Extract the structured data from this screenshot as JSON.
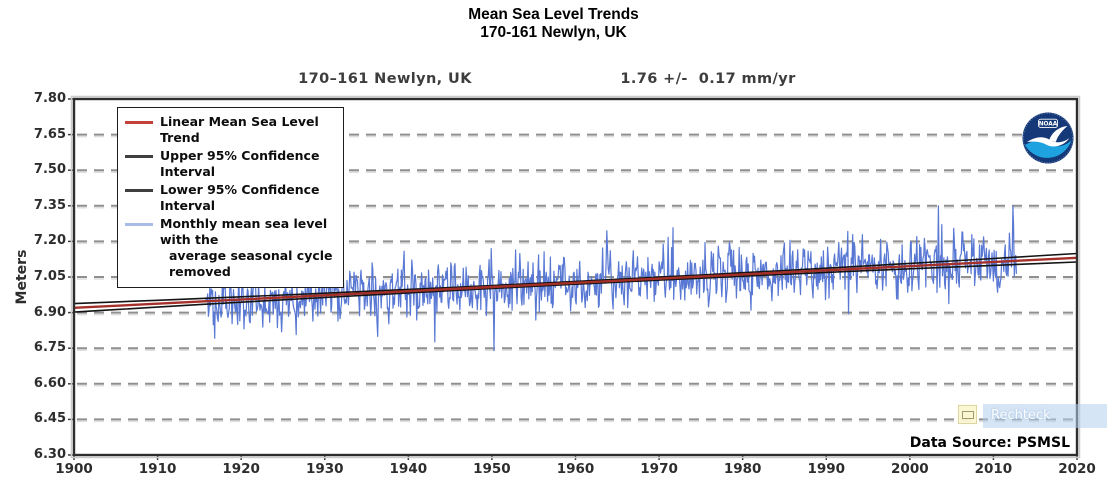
{
  "header": {
    "title_line1": "Mean Sea Level Trends",
    "title_line2": "170-161 Newlyn, UK"
  },
  "chart_data": {
    "type": "line",
    "station_label": "170–161 Newlyn, UK",
    "trend_label": "1.76 +/-  0.17 mm/yr",
    "ylabel": "Meters",
    "x_axis": {
      "min": 1900,
      "max": 2020,
      "ticks": [
        1900,
        1910,
        1920,
        1930,
        1940,
        1950,
        1960,
        1970,
        1980,
        1990,
        2000,
        2010,
        2020
      ]
    },
    "y_axis": {
      "min": 6.3,
      "max": 7.8,
      "ticks": [
        7.8,
        7.65,
        7.5,
        7.35,
        7.2,
        7.05,
        6.9,
        6.75,
        6.6,
        6.45,
        6.3
      ]
    },
    "grid": "horizontal-dashed",
    "legend_position": "top-left",
    "trend_line": {
      "name": "Linear Mean Sea Level Trend",
      "color": "#a5302a",
      "points": [
        [
          1900,
          6.92
        ],
        [
          2020,
          7.131
        ]
      ],
      "rate_mm_per_yr": 1.76,
      "uncertainty_mm_per_yr": 0.17
    },
    "confidence_interval": {
      "upper_name": "Upper 95% Confidence Interval",
      "lower_name": "Lower 95% Confidence Interval",
      "color": "#141414",
      "half_width_mid_m": 0.006,
      "half_width_end_m": 0.018,
      "mid_year": 1960
    },
    "monthly_series": {
      "name": "Monthly mean sea level with the average seasonal cycle removed",
      "color": "#5878d4",
      "start_year": 1915.75,
      "end_year": 2012.8,
      "interval_years": 0.08333,
      "typical_deviation_m": 0.055,
      "min_m": 6.74,
      "max_m": 7.35,
      "seed": 11
    },
    "legend": [
      {
        "swatch": "#c4413c",
        "lines": [
          "Linear Mean Sea Level Trend"
        ]
      },
      {
        "swatch": "#3f3f3f",
        "lines": [
          "Upper 95% Confidence Interval"
        ]
      },
      {
        "swatch": "#3f3f3f",
        "lines": [
          "Lower 95% Confidence Interval"
        ]
      },
      {
        "swatch": "#a9bce8",
        "lines": [
          "Monthly mean sea level with the",
          "average seasonal cycle removed"
        ]
      }
    ],
    "data_source": "Data Source: PSMSL"
  },
  "noaa": {
    "label": "NOAA"
  },
  "overlay": {
    "tool_tooltip": "Rechteck"
  }
}
